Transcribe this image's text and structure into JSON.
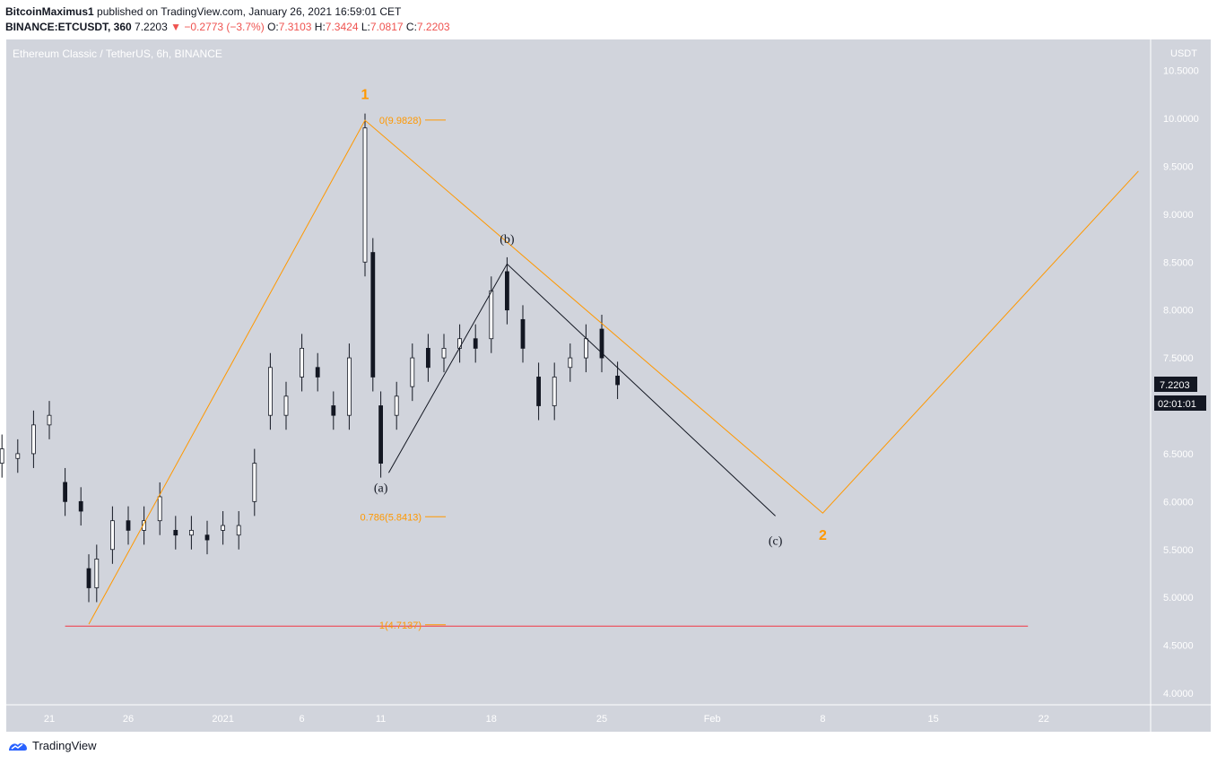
{
  "header": {
    "author": "BitcoinMaximus1",
    "published": "published on TradingView.com, January 26, 2021 16:59:01 CET",
    "symbol": "BINANCE:ETCUSDT, 360",
    "price": "7.2203",
    "change": "−0.2773 (−3.7%)",
    "o_label": "O:",
    "o": "7.3103",
    "h_label": "H:",
    "h": "7.3424",
    "l_label": "L:",
    "l": "7.0817",
    "c_label": "C:",
    "c": "7.2203"
  },
  "footer": {
    "brand": "TradingView"
  },
  "colors": {
    "background": "#d1d4dc",
    "orange": "#ff9800",
    "dark": "#131722",
    "red": "#f23645",
    "axis_text": "#ffffff"
  },
  "chart_data": {
    "type": "candlestick",
    "title": "Ethereum Classic / TetherUS, 6h, BINANCE",
    "y_unit": "USDT",
    "ylim": [
      3.87,
      10.99
    ],
    "y_ticks": [
      "10.5000",
      "10.0000",
      "9.5000",
      "9.0000",
      "8.5000",
      "8.0000",
      "7.5000",
      "7.0000",
      "6.5000",
      "6.0000",
      "5.5000",
      "5.0000",
      "4.5000",
      "4.0000"
    ],
    "x_ticks": [
      {
        "label": "21",
        "date": "2020-12-21"
      },
      {
        "label": "26",
        "date": "2020-12-26"
      },
      {
        "label": "2021",
        "date": "2021-01-01"
      },
      {
        "label": "6",
        "date": "2021-01-06"
      },
      {
        "label": "11",
        "date": "2021-01-11"
      },
      {
        "label": "18",
        "date": "2021-01-18"
      },
      {
        "label": "25",
        "date": "2021-01-25"
      },
      {
        "label": "Feb",
        "date": "2021-02-01"
      },
      {
        "label": "8",
        "date": "2021-02-08"
      },
      {
        "label": "15",
        "date": "2021-02-15"
      },
      {
        "label": "22",
        "date": "2021-02-22"
      }
    ],
    "current_price_label": "7.2203",
    "countdown_label": "02:01:01",
    "candles_approx": [
      [
        "2020-12-18",
        6.4,
        6.55
      ],
      [
        "2020-12-19",
        6.45,
        6.5
      ],
      [
        "2020-12-20",
        6.5,
        6.8
      ],
      [
        "2020-12-21",
        6.8,
        6.9
      ],
      [
        "2020-12-22",
        6.2,
        6.0
      ],
      [
        "2020-12-23",
        6.0,
        5.9
      ],
      [
        "2020-12-23T12",
        5.3,
        5.1
      ],
      [
        "2020-12-24",
        5.1,
        5.4
      ],
      [
        "2020-12-25",
        5.5,
        5.8
      ],
      [
        "2020-12-26",
        5.8,
        5.7
      ],
      [
        "2020-12-27",
        5.7,
        5.8
      ],
      [
        "2020-12-28",
        5.8,
        6.05
      ],
      [
        "2020-12-29",
        5.7,
        5.65
      ],
      [
        "2020-12-30",
        5.65,
        5.7
      ],
      [
        "2020-12-31",
        5.65,
        5.6
      ],
      [
        "2021-01-01",
        5.7,
        5.75
      ],
      [
        "2021-01-02",
        5.65,
        5.75
      ],
      [
        "2021-01-03",
        6.0,
        6.4
      ],
      [
        "2021-01-04",
        6.9,
        7.4
      ],
      [
        "2021-01-05",
        6.9,
        7.1
      ],
      [
        "2021-01-06",
        7.3,
        7.6
      ],
      [
        "2021-01-07",
        7.4,
        7.3
      ],
      [
        "2021-01-08",
        7.0,
        6.9
      ],
      [
        "2021-01-09",
        6.9,
        7.5
      ],
      [
        "2021-01-10",
        8.5,
        9.9
      ],
      [
        "2021-01-10T12",
        8.6,
        7.3
      ],
      [
        "2021-01-11",
        7.0,
        6.4
      ],
      [
        "2021-01-12",
        6.9,
        7.1
      ],
      [
        "2021-01-13",
        7.2,
        7.5
      ],
      [
        "2021-01-14",
        7.6,
        7.4
      ],
      [
        "2021-01-15",
        7.5,
        7.6
      ],
      [
        "2021-01-16",
        7.6,
        7.7
      ],
      [
        "2021-01-17",
        7.7,
        7.6
      ],
      [
        "2021-01-18",
        7.7,
        8.2
      ],
      [
        "2021-01-19",
        8.4,
        8.0
      ],
      [
        "2021-01-20",
        7.9,
        7.6
      ],
      [
        "2021-01-21",
        7.3,
        7.0
      ],
      [
        "2021-01-22",
        7.0,
        7.3
      ],
      [
        "2021-01-23",
        7.4,
        7.5
      ],
      [
        "2021-01-24",
        7.5,
        7.7
      ],
      [
        "2021-01-25",
        7.8,
        7.5
      ],
      [
        "2021-01-26",
        7.31,
        7.22
      ]
    ],
    "annotations": [
      {
        "type": "label",
        "text": "1",
        "date": "2021-01-10",
        "y": 10.2,
        "color": "orange"
      },
      {
        "type": "label",
        "text": "2",
        "date": "2021-02-08",
        "y": 5.6,
        "color": "orange"
      },
      {
        "type": "label",
        "text": "(a)",
        "date": "2021-01-11",
        "y": 6.1,
        "color": "dark"
      },
      {
        "type": "label",
        "text": "(b)",
        "date": "2021-01-19",
        "y": 8.7,
        "color": "dark"
      },
      {
        "type": "label",
        "text": "(c)",
        "date": "2021-02-05",
        "y": 5.55,
        "color": "dark"
      },
      {
        "type": "fib",
        "text": "0(9.9828)",
        "value": 9.9828
      },
      {
        "type": "fib",
        "text": "0.786(5.8413)",
        "value": 5.8413
      },
      {
        "type": "fib",
        "text": "1(4.7137)",
        "value": 4.7137
      }
    ],
    "orange_path": [
      [
        "2020-12-23T12",
        4.72
      ],
      [
        "2021-01-10",
        9.98
      ],
      [
        "2021-02-08",
        5.88
      ],
      [
        "2021-02-28",
        9.45
      ]
    ],
    "dark_path": [
      [
        "2021-01-11T12",
        6.3
      ],
      [
        "2021-01-19",
        8.48
      ],
      [
        "2021-02-05",
        5.85
      ]
    ],
    "red_line": {
      "from": "2020-12-22",
      "to": "2021-02-21",
      "y": 4.7
    }
  }
}
